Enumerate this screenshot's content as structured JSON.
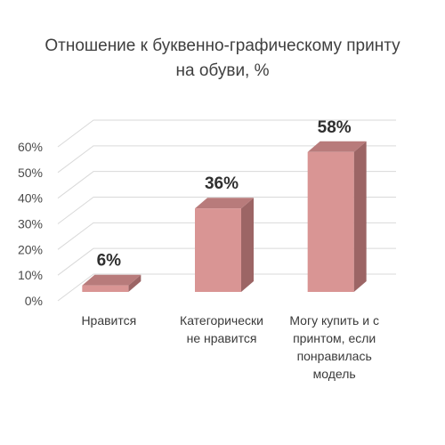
{
  "chart_data": {
    "type": "bar",
    "title_lines": [
      "Отношение к буквенно-графическому принту",
      "на обуви, %"
    ],
    "categories": [
      "Нравится",
      "Категорически не нравится",
      "Могу купить и с принтом, если понравилась модель"
    ],
    "category_label_lines": [
      [
        "Нравится"
      ],
      [
        "Категорически",
        "не нравится"
      ],
      [
        "Могу купить и с",
        "принтом, если",
        "понравилась",
        "модель"
      ]
    ],
    "values": [
      6,
      36,
      58
    ],
    "data_labels": [
      "6%",
      "36%",
      "58%"
    ],
    "ylim": [
      0,
      60
    ],
    "yticks": [
      "0%",
      "10%",
      "20%",
      "30%",
      "40%",
      "50%",
      "60%"
    ],
    "grid": true,
    "legend": "none",
    "style": "3d",
    "colors": {
      "bar_front": "#d99594",
      "bar_side": "#9c6565",
      "bar_top": "#b87b7b",
      "grid": "#d9d9d9"
    }
  }
}
